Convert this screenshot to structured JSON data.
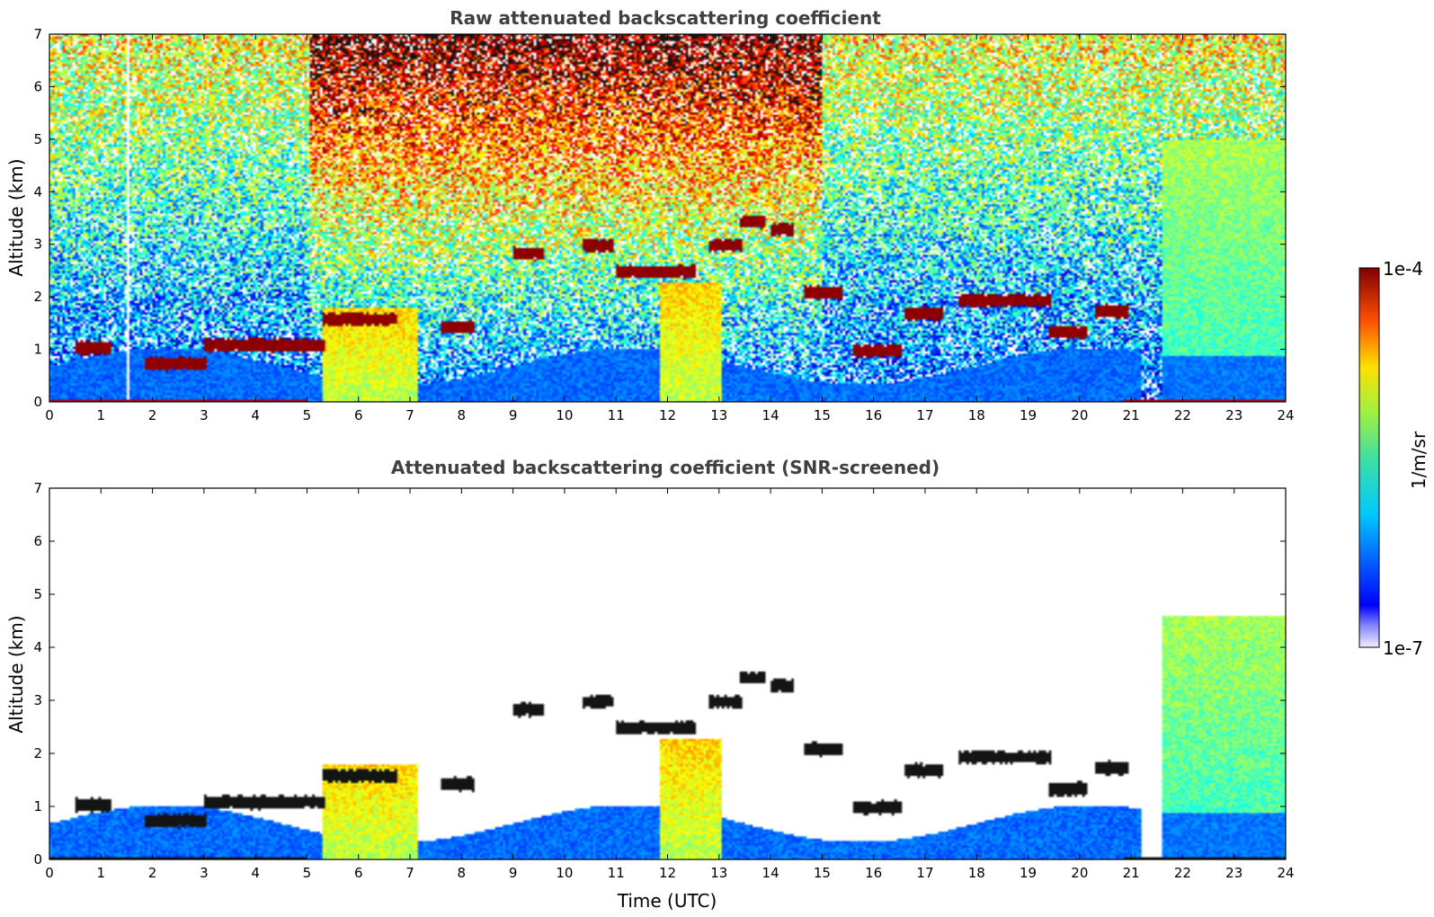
{
  "chart_data": [
    {
      "type": "heatmap",
      "title": "Raw attenuated backscattering coefficient",
      "xlabel": "",
      "ylabel": "Altitude (km)",
      "xlim": [
        0,
        24
      ],
      "ylim": [
        0,
        7
      ],
      "x_ticks": [
        "0",
        "1",
        "2",
        "3",
        "4",
        "5",
        "6",
        "7",
        "8",
        "9",
        "10",
        "11",
        "12",
        "13",
        "14",
        "15",
        "16",
        "17",
        "18",
        "19",
        "20",
        "21",
        "22",
        "23",
        "24"
      ],
      "y_ticks": [
        "0",
        "1",
        "2",
        "3",
        "4",
        "5",
        "6",
        "7"
      ],
      "features": {
        "noise_background": "random speckle increasing in value with altitude, strongest 6-13 UTC above 4 km",
        "data_gap_at_time": 1.5,
        "cloud_layers": [
          {
            "t0": 0.5,
            "t1": 1.2,
            "alt_km": 1.05
          },
          {
            "t0": 1.8,
            "t1": 3.0,
            "alt_km": 0.75
          },
          {
            "t0": 3.0,
            "t1": 5.3,
            "alt_km": 1.1
          },
          {
            "t0": 5.3,
            "t1": 6.7,
            "alt_km": 1.6
          },
          {
            "t0": 7.6,
            "t1": 8.2,
            "alt_km": 1.45
          },
          {
            "t0": 9.0,
            "t1": 9.6,
            "alt_km": 2.85
          },
          {
            "t0": 10.3,
            "t1": 10.9,
            "alt_km": 3.0
          },
          {
            "t0": 11.0,
            "t1": 12.5,
            "alt_km": 2.5
          },
          {
            "t0": 12.8,
            "t1": 13.4,
            "alt_km": 3.0
          },
          {
            "t0": 13.4,
            "t1": 13.9,
            "alt_km": 3.45
          },
          {
            "t0": 14.0,
            "t1": 14.4,
            "alt_km": 3.3
          },
          {
            "t0": 14.6,
            "t1": 15.4,
            "alt_km": 2.1
          },
          {
            "t0": 15.6,
            "t1": 16.5,
            "alt_km": 1.0
          },
          {
            "t0": 16.6,
            "t1": 17.3,
            "alt_km": 1.7
          },
          {
            "t0": 17.6,
            "t1": 19.4,
            "alt_km": 1.95
          },
          {
            "t0": 19.4,
            "t1": 20.1,
            "alt_km": 1.35
          },
          {
            "t0": 20.3,
            "t1": 20.9,
            "alt_km": 1.75
          }
        ],
        "aerosol_columns": [
          {
            "t0": 5.3,
            "t1": 7.1,
            "top_km": 1.8
          },
          {
            "t0": 11.8,
            "t1": 13.0,
            "top_km": 2.3
          },
          {
            "t0": 21.6,
            "t1": 24.0,
            "top_km": 5.0
          }
        ],
        "boundary_layer_km": 0.5
      }
    },
    {
      "type": "heatmap",
      "title": "Attenuated backscattering coefficient (SNR-screened)",
      "xlabel": "Time (UTC)",
      "ylabel": "Altitude (km)",
      "xlim": [
        0,
        24
      ],
      "ylim": [
        0,
        7
      ],
      "x_ticks": [
        "0",
        "1",
        "2",
        "3",
        "4",
        "5",
        "6",
        "7",
        "8",
        "9",
        "10",
        "11",
        "12",
        "13",
        "14",
        "15",
        "16",
        "17",
        "18",
        "19",
        "20",
        "21",
        "22",
        "23",
        "24"
      ],
      "y_ticks": [
        "0",
        "1",
        "2",
        "3",
        "4",
        "5",
        "6",
        "7"
      ],
      "features": {
        "screening": "low signal-to-noise pixels removed (white)",
        "remaining_layers": "same cloud layers as raw panel, plus boundary layer below ~1 km and aerosol columns",
        "aerosol_columns": [
          {
            "t0": 21.6,
            "t1": 24.0,
            "top_km": 4.6
          }
        ]
      }
    }
  ],
  "colorbar": {
    "max_label": "1e-4",
    "min_label": "1e-7",
    "unit_label": "1/m/sr",
    "scale": "log"
  }
}
